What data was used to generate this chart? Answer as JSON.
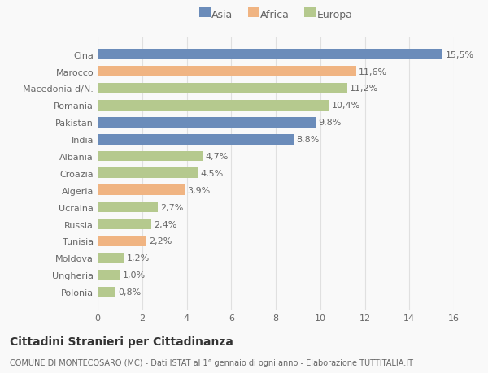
{
  "categories": [
    "Cina",
    "Marocco",
    "Macedonia d/N.",
    "Romania",
    "Pakistan",
    "India",
    "Albania",
    "Croazia",
    "Algeria",
    "Ucraina",
    "Russia",
    "Tunisia",
    "Moldova",
    "Ungheria",
    "Polonia"
  ],
  "values": [
    15.5,
    11.6,
    11.2,
    10.4,
    9.8,
    8.8,
    4.7,
    4.5,
    3.9,
    2.7,
    2.4,
    2.2,
    1.2,
    1.0,
    0.8
  ],
  "labels": [
    "15,5%",
    "11,6%",
    "11,2%",
    "10,4%",
    "9,8%",
    "8,8%",
    "4,7%",
    "4,5%",
    "3,9%",
    "2,7%",
    "2,4%",
    "2,2%",
    "1,2%",
    "1,0%",
    "0,8%"
  ],
  "colors": [
    "#6b8cba",
    "#f0b482",
    "#b5c98e",
    "#b5c98e",
    "#6b8cba",
    "#6b8cba",
    "#b5c98e",
    "#b5c98e",
    "#f0b482",
    "#b5c98e",
    "#b5c98e",
    "#f0b482",
    "#b5c98e",
    "#b5c98e",
    "#b5c98e"
  ],
  "legend_labels": [
    "Asia",
    "Africa",
    "Europa"
  ],
  "legend_colors": [
    "#6b8cba",
    "#f0b482",
    "#b5c98e"
  ],
  "title": "Cittadini Stranieri per Cittadinanza",
  "subtitle": "COMUNE DI MONTECOSARO (MC) - Dati ISTAT al 1° gennaio di ogni anno - Elaborazione TUTTITALIA.IT",
  "xlim": [
    0,
    16
  ],
  "xticks": [
    0,
    2,
    4,
    6,
    8,
    10,
    12,
    14,
    16
  ],
  "background_color": "#f9f9f9",
  "grid_color": "#e0e0e0",
  "text_color": "#666666",
  "label_fontsize": 8,
  "tick_fontsize": 8,
  "title_fontsize": 10,
  "subtitle_fontsize": 7,
  "bar_height": 0.62
}
